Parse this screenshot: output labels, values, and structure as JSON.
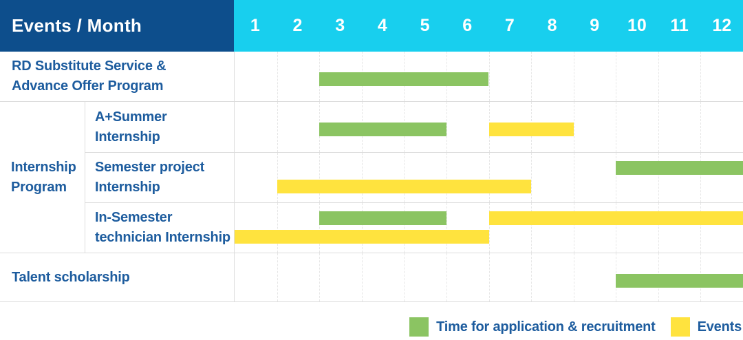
{
  "header": {
    "title": "Events / Month",
    "months": [
      "1",
      "2",
      "3",
      "4",
      "5",
      "6",
      "7",
      "8",
      "9",
      "10",
      "11",
      "12"
    ]
  },
  "rows": {
    "rd": {
      "line1": "RD Substitute Service &",
      "line2": "Advance Offer Program"
    },
    "group": {
      "line1": "Internship",
      "line2": "Program"
    },
    "summer": {
      "line1": "A+Summer",
      "line2": "Internship"
    },
    "semester": {
      "line1": "Semester project",
      "line2": "Internship"
    },
    "insem": {
      "line1": "In-Semester",
      "line2": "technician Internship"
    },
    "talent": {
      "line1": "Talent scholarship"
    }
  },
  "legend": {
    "green_label": "Time for application & recruitment",
    "yellow_label": "Events"
  },
  "colors": {
    "header_blue": "#0D4E8C",
    "header_cyan": "#18CFEE",
    "text_blue": "#1D5C9E",
    "green": "#8BC462",
    "yellow": "#FFE33E",
    "grid_line": "#DCDCDC"
  },
  "chart_data": {
    "type": "gantt",
    "x_unit": "month",
    "x_range": [
      1,
      12
    ],
    "legend_position": "bottom-right",
    "legend": [
      {
        "key": "application",
        "name": "Time for application & recruitment",
        "color": "#8BC462"
      },
      {
        "key": "events",
        "name": "Events",
        "color": "#FFE33E"
      }
    ],
    "rows": [
      {
        "label": "RD Substitute Service & Advance Offer Program",
        "group": null,
        "bars": [
          {
            "series": "application",
            "start": 3,
            "end": 6,
            "lane": "single"
          }
        ]
      },
      {
        "label": "A+Summer Internship",
        "group": "Internship Program",
        "bars": [
          {
            "series": "application",
            "start": 3,
            "end": 5,
            "lane": "single"
          },
          {
            "series": "events",
            "start": 7,
            "end": 8,
            "lane": "single"
          }
        ]
      },
      {
        "label": "Semester project Internship",
        "group": "Internship Program",
        "bars": [
          {
            "series": "application",
            "start": 10,
            "end": 12,
            "lane": "upper"
          },
          {
            "series": "events",
            "start": 2,
            "end": 7,
            "lane": "lower"
          }
        ]
      },
      {
        "label": "In-Semester technician Internship",
        "group": "Internship Program",
        "bars": [
          {
            "series": "application",
            "start": 3,
            "end": 5,
            "lane": "upper"
          },
          {
            "series": "events",
            "start": 7,
            "end": 12,
            "lane": "upper"
          },
          {
            "series": "events",
            "start": 1,
            "end": 6,
            "lane": "lower"
          }
        ]
      },
      {
        "label": "Talent scholarship",
        "group": null,
        "bars": [
          {
            "series": "application",
            "start": 10,
            "end": 12,
            "lane": "single"
          }
        ]
      }
    ]
  }
}
